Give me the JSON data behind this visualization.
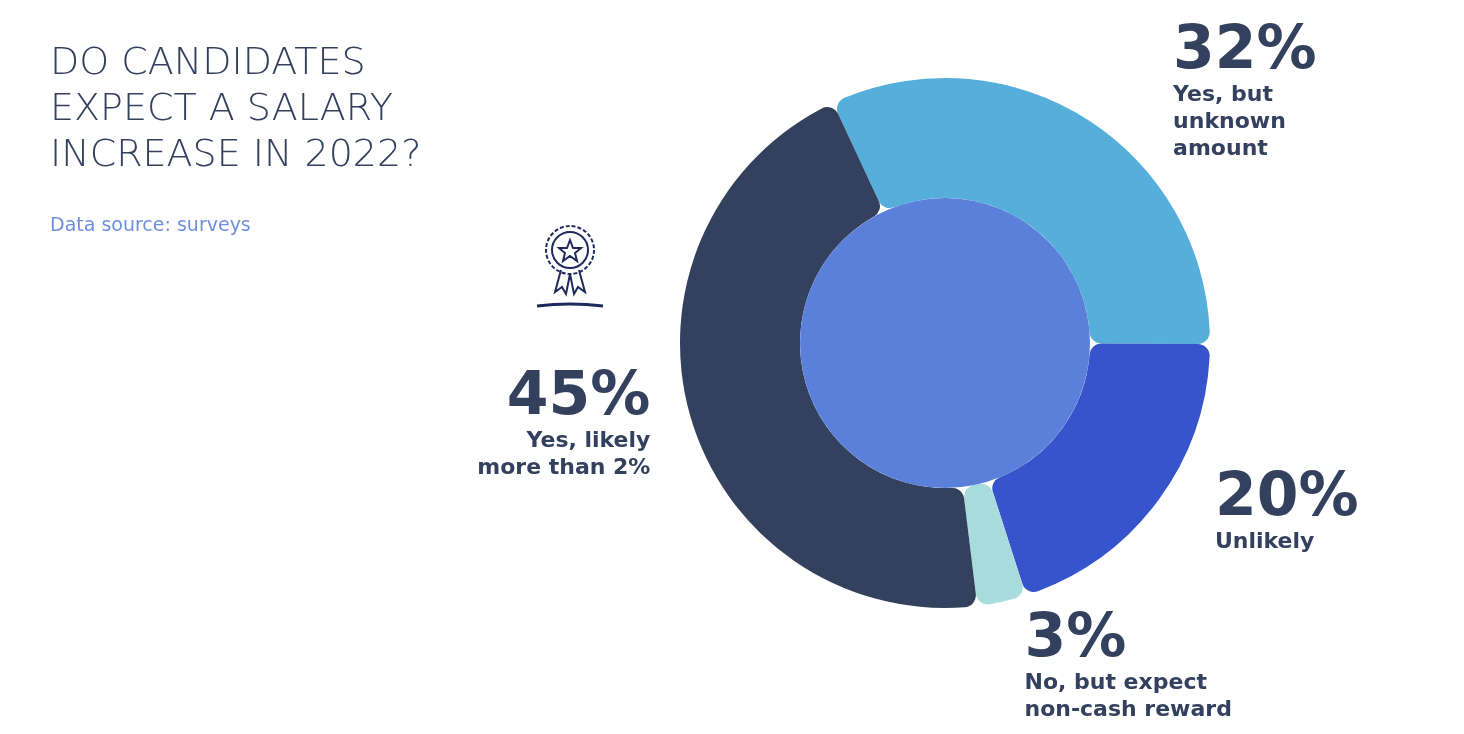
{
  "chart_data": {
    "type": "donut",
    "title": "DO CANDIDATES EXPECT A SALARY INCREASE IN 2022?",
    "annotations": [
      "Data source: surveys"
    ],
    "categories": [
      "Yes, but unknown amount",
      "Unlikely",
      "No, but expect non-cash reward",
      "Yes, likely more than 2%"
    ],
    "values": [
      32,
      20,
      3,
      45
    ],
    "value_labels": [
      "32%",
      "20%",
      "3%",
      "45%"
    ],
    "colors": [
      "#56aedb",
      "#3654cc",
      "#a8dcdc",
      "#33415f"
    ]
  }
}
